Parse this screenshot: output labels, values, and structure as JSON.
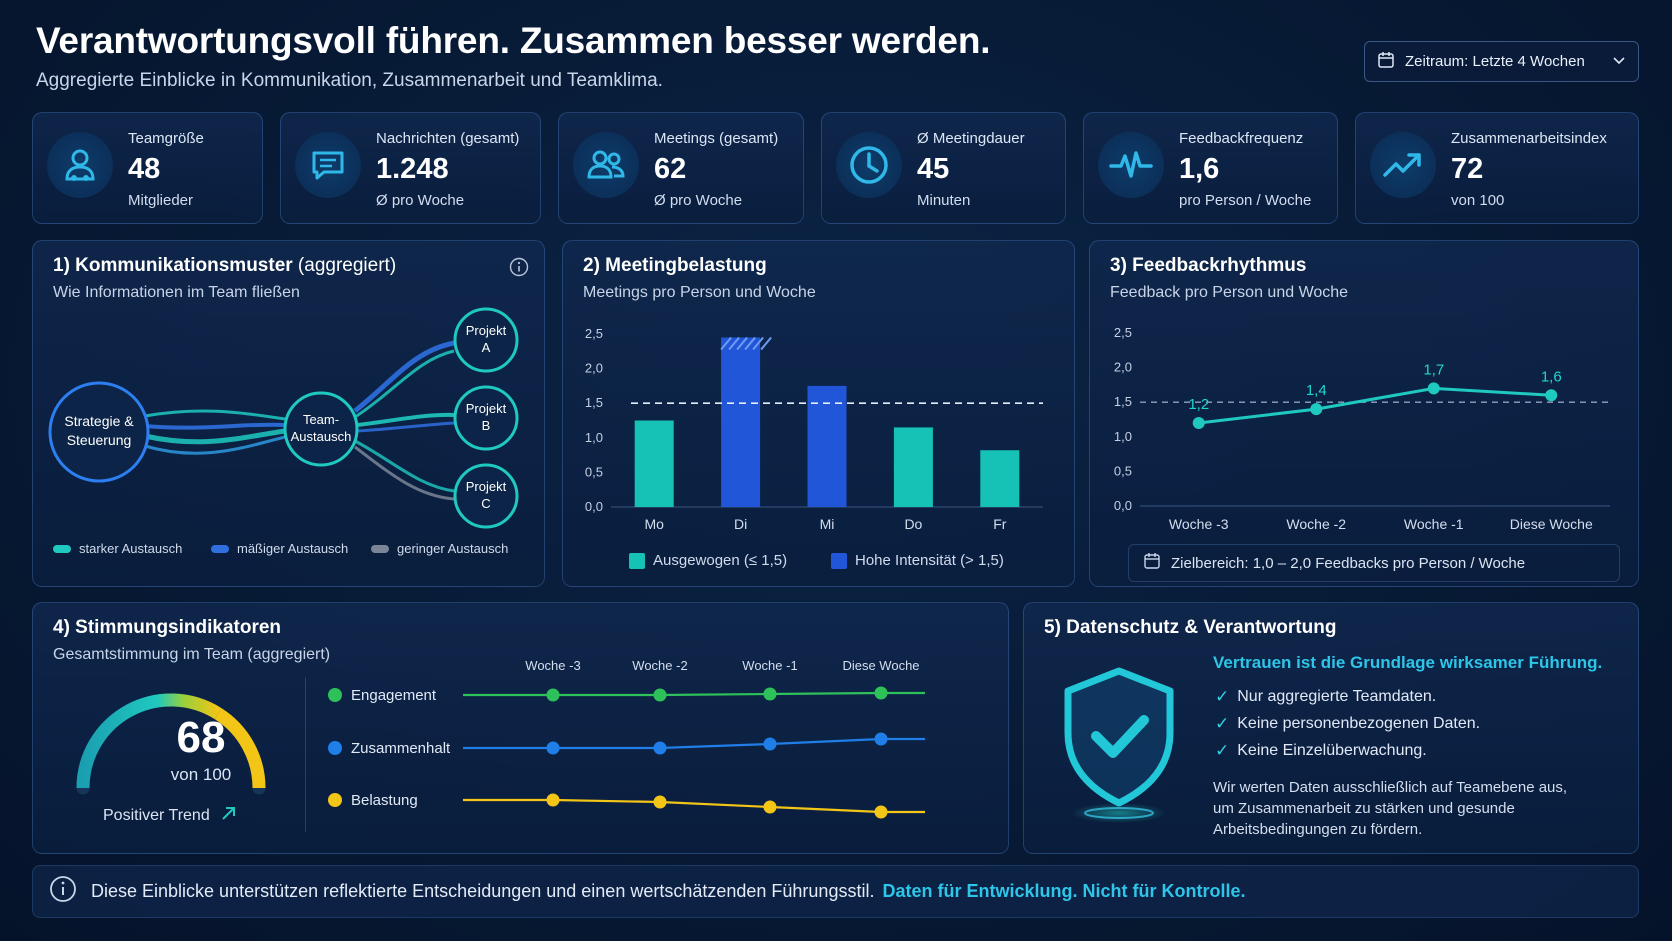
{
  "header": {
    "title": "Verantwortungsvoll führen. Zusammen besser werden.",
    "subtitle": "Aggregierte Einblicke in Kommunikation, Zusammenarbeit und Teamklima.",
    "period_label": "Zeitraum: Letzte 4 Wochen"
  },
  "kpis": [
    {
      "label": "Teamgröße",
      "value": "48",
      "sub": "Mitglieder",
      "icon": "team-icon"
    },
    {
      "label": "Nachrichten (gesamt)",
      "value": "1.248",
      "sub": "Ø pro Woche",
      "icon": "chat-icon"
    },
    {
      "label": "Meetings (gesamt)",
      "value": "62",
      "sub": "Ø pro Woche",
      "icon": "group-icon"
    },
    {
      "label": "Ø Meetingdauer",
      "value": "45",
      "sub": "Minuten",
      "icon": "clock-icon"
    },
    {
      "label": "Feedbackfrequenz",
      "value": "1,6",
      "sub": "pro Person / Woche",
      "icon": "pulse-icon"
    },
    {
      "label": "Zusammenarbeitsindex",
      "value": "72",
      "sub": "von 100",
      "icon": "trend-up-icon"
    }
  ],
  "communication": {
    "title_bold": "1) Kommunikationsmuster",
    "title_light": " (aggregiert)",
    "subtitle": "Wie Informationen im Team fließen",
    "nodes": {
      "strategy": [
        "Strategie &",
        "Steuerung"
      ],
      "team": [
        "Team-",
        "Austausch"
      ],
      "a": [
        "Projekt",
        "A"
      ],
      "b": [
        "Projekt",
        "B"
      ],
      "c": [
        "Projekt",
        "C"
      ]
    },
    "legend": [
      {
        "label": "starker Austausch",
        "color": "#1fc9c0"
      },
      {
        "label": "mäßiger Austausch",
        "color": "#2f6fe0"
      },
      {
        "label": "geringer Austausch",
        "color": "#7b8598"
      }
    ]
  },
  "meetings": {
    "title": "2) Meetingbelastung",
    "subtitle": "Meetings pro Person und Woche",
    "legend_balanced": "Ausgewogen (≤ 1,5)",
    "legend_high": "Hohe Intensität (> 1,5)",
    "colors": {
      "balanced": "#16c2b6",
      "high": "#2156d8"
    }
  },
  "feedback": {
    "title": "3) Feedbackrhythmus",
    "subtitle": "Feedback pro Person und Woche",
    "target": "Zielbereich: 1,0 – 2,0 Feedbacks pro Person / Woche"
  },
  "chart_data": [
    {
      "type": "bar",
      "categories": [
        "Mo",
        "Di",
        "Mi",
        "Do",
        "Fr"
      ],
      "values": [
        1.25,
        2.45,
        1.75,
        1.15,
        0.82
      ],
      "threshold": 1.5,
      "ylim": [
        0,
        2.5
      ],
      "yticks": [
        "0,0",
        "0,5",
        "1,0",
        "1,5",
        "2,0",
        "2,5"
      ]
    },
    {
      "type": "line",
      "x": [
        "Woche -3",
        "Woche -2",
        "Woche -1",
        "Diese Woche"
      ],
      "values": [
        1.2,
        1.4,
        1.7,
        1.6
      ],
      "labels": [
        "1,2",
        "1,4",
        "1,7",
        "1,6"
      ],
      "threshold": 1.5,
      "ylim": [
        0,
        2.5
      ],
      "yticks": [
        "0,0",
        "0,5",
        "1,0",
        "1,5",
        "2,0",
        "2,5"
      ]
    }
  ],
  "mood": {
    "title": "4) Stimmungsindikatoren",
    "subtitle": "Gesamtstimmung im Team (aggregiert)",
    "score": "68",
    "score_of": "von 100",
    "score_value": 68,
    "trend": "Positiver Trend",
    "weeks": [
      "Woche -3",
      "Woche -2",
      "Woche -1",
      "Diese Woche"
    ],
    "indicators": [
      {
        "label": "Engagement",
        "color": "#2ec15a"
      },
      {
        "label": "Zusammenhalt",
        "color": "#1f7ee8"
      },
      {
        "label": "Belastung",
        "color": "#f2c517"
      }
    ]
  },
  "privacy": {
    "title": "5) Datenschutz & Verantwortung",
    "headline": "Vertrauen ist die Grundlage wirksamer Führung.",
    "items": [
      "Nur aggregierte Teamdaten.",
      "Keine personenbezogenen Daten.",
      "Keine Einzelüberwachung."
    ],
    "text1": "Wir werten Daten ausschließlich auf Teamebene aus,",
    "text2": "um Zusammenarbeit zu stärken und gesunde",
    "text3": "Arbeitsbedingungen zu fördern."
  },
  "footer": {
    "text": "Diese Einblicke unterstützen reflektierte Entscheidungen und einen wertschätzenden Führungsstil.",
    "highlight": "Daten für Entwicklung. Nicht für Kontrolle."
  }
}
